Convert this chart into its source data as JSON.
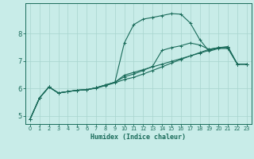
{
  "xlabel": "Humidex (Indice chaleur)",
  "bg_color": "#c8ece8",
  "grid_color": "#a8d4ce",
  "line_color": "#1a6b5a",
  "spine_color": "#1a6b5a",
  "xlim": [
    -0.5,
    23.5
  ],
  "ylim": [
    4.7,
    9.1
  ],
  "yticks": [
    5,
    6,
    7,
    8
  ],
  "xticks": [
    0,
    1,
    2,
    3,
    4,
    5,
    6,
    7,
    8,
    9,
    10,
    11,
    12,
    13,
    14,
    15,
    16,
    17,
    18,
    19,
    20,
    21,
    22,
    23
  ],
  "line1_x": [
    0,
    1,
    2,
    3,
    4,
    5,
    6,
    7,
    8,
    9,
    10,
    11,
    12,
    13,
    14,
    15,
    16,
    17,
    18,
    19,
    20,
    21,
    22,
    23
  ],
  "line1_y": [
    4.88,
    5.65,
    6.05,
    5.83,
    5.88,
    5.93,
    5.95,
    6.02,
    6.12,
    6.22,
    6.48,
    6.58,
    6.68,
    6.78,
    6.88,
    6.98,
    7.08,
    7.18,
    7.28,
    7.38,
    7.48,
    7.52,
    6.88,
    6.88
  ],
  "line2_x": [
    0,
    1,
    2,
    3,
    4,
    5,
    6,
    7,
    8,
    9,
    10,
    11,
    12,
    13,
    14,
    15,
    16,
    17,
    18,
    19,
    20,
    21,
    22,
    23
  ],
  "line2_y": [
    4.88,
    5.65,
    6.05,
    5.83,
    5.88,
    5.93,
    5.95,
    6.02,
    6.12,
    6.22,
    7.65,
    8.32,
    8.52,
    8.58,
    8.65,
    8.72,
    8.7,
    8.38,
    7.78,
    7.35,
    7.45,
    7.45,
    6.88,
    6.88
  ],
  "line3_x": [
    0,
    1,
    2,
    3,
    4,
    5,
    6,
    7,
    8,
    9,
    10,
    11,
    12,
    13,
    14,
    15,
    16,
    17,
    18,
    19,
    20,
    21,
    22,
    23
  ],
  "line3_y": [
    4.88,
    5.65,
    6.05,
    5.83,
    5.88,
    5.93,
    5.95,
    6.02,
    6.12,
    6.22,
    6.42,
    6.52,
    6.65,
    6.8,
    7.38,
    7.48,
    7.55,
    7.65,
    7.58,
    7.42,
    7.48,
    7.48,
    6.88,
    6.88
  ],
  "line4_x": [
    0,
    1,
    2,
    3,
    4,
    5,
    6,
    7,
    8,
    9,
    10,
    11,
    12,
    13,
    14,
    15,
    16,
    17,
    18,
    19,
    20,
    21,
    22,
    23
  ],
  "line4_y": [
    4.88,
    5.65,
    6.05,
    5.83,
    5.88,
    5.93,
    5.95,
    6.0,
    6.1,
    6.2,
    6.32,
    6.4,
    6.52,
    6.65,
    6.78,
    6.92,
    7.05,
    7.18,
    7.3,
    7.42,
    7.48,
    7.5,
    6.88,
    6.88
  ]
}
